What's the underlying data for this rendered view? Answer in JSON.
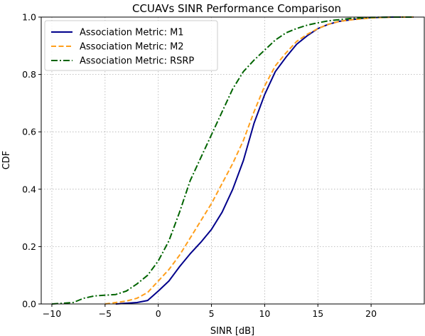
{
  "chart_data": {
    "type": "line",
    "title": "CCUAVs SINR Performance Comparison",
    "xlabel": "SINR [dB]",
    "ylabel": "CDF",
    "xlim": [
      -11,
      25
    ],
    "ylim": [
      0,
      1.0
    ],
    "xticks": [
      -10,
      -5,
      0,
      5,
      10,
      15,
      20
    ],
    "yticks": [
      0.0,
      0.2,
      0.4,
      0.6,
      0.8,
      1.0
    ],
    "xtick_labels": [
      "−10",
      "−5",
      "0",
      "5",
      "10",
      "15",
      "20"
    ],
    "ytick_labels": [
      "0.0",
      "0.2",
      "0.4",
      "0.6",
      "0.8",
      "1.0"
    ],
    "grid": true,
    "legend_position": "top-left",
    "series": [
      {
        "name": "Association Metric: M1",
        "color": "#00008b",
        "style": "solid",
        "points": [
          [
            -4,
            0
          ],
          [
            -2,
            0.005
          ],
          [
            -1,
            0.012
          ],
          [
            0,
            0.045
          ],
          [
            1,
            0.08
          ],
          [
            2,
            0.13
          ],
          [
            3,
            0.175
          ],
          [
            4,
            0.215
          ],
          [
            5,
            0.26
          ],
          [
            6,
            0.32
          ],
          [
            7,
            0.4
          ],
          [
            8,
            0.5
          ],
          [
            9,
            0.63
          ],
          [
            10,
            0.73
          ],
          [
            11,
            0.81
          ],
          [
            12,
            0.86
          ],
          [
            13,
            0.905
          ],
          [
            14,
            0.935
          ],
          [
            15,
            0.96
          ],
          [
            16,
            0.975
          ],
          [
            17,
            0.985
          ],
          [
            18,
            0.99
          ],
          [
            19,
            0.995
          ],
          [
            20,
            0.998
          ],
          [
            22,
            1.0
          ],
          [
            24,
            1.0
          ]
        ]
      },
      {
        "name": "Association Metric: M2",
        "color": "#ff9f1c",
        "style": "dashed",
        "points": [
          [
            -5,
            0
          ],
          [
            -3,
            0.01
          ],
          [
            -2,
            0.02
          ],
          [
            -1,
            0.04
          ],
          [
            0,
            0.08
          ],
          [
            1,
            0.12
          ],
          [
            2,
            0.17
          ],
          [
            3,
            0.23
          ],
          [
            4,
            0.29
          ],
          [
            5,
            0.35
          ],
          [
            6,
            0.42
          ],
          [
            7,
            0.49
          ],
          [
            8,
            0.57
          ],
          [
            9,
            0.67
          ],
          [
            10,
            0.76
          ],
          [
            11,
            0.83
          ],
          [
            12,
            0.875
          ],
          [
            13,
            0.915
          ],
          [
            14,
            0.94
          ],
          [
            15,
            0.96
          ],
          [
            16,
            0.975
          ],
          [
            17,
            0.985
          ],
          [
            18,
            0.99
          ],
          [
            20,
            0.997
          ],
          [
            22,
            1.0
          ],
          [
            24,
            1.0
          ]
        ]
      },
      {
        "name": "Association Metric: RSRP",
        "color": "#006400",
        "style": "dashdot",
        "points": [
          [
            -10,
            0
          ],
          [
            -8,
            0.005
          ],
          [
            -7,
            0.02
          ],
          [
            -6,
            0.028
          ],
          [
            -4,
            0.033
          ],
          [
            -3,
            0.045
          ],
          [
            -2,
            0.07
          ],
          [
            -1,
            0.1
          ],
          [
            0,
            0.15
          ],
          [
            1,
            0.22
          ],
          [
            2,
            0.32
          ],
          [
            3,
            0.43
          ],
          [
            4,
            0.51
          ],
          [
            5,
            0.59
          ],
          [
            6,
            0.67
          ],
          [
            7,
            0.75
          ],
          [
            8,
            0.81
          ],
          [
            9,
            0.85
          ],
          [
            10,
            0.885
          ],
          [
            11,
            0.92
          ],
          [
            12,
            0.945
          ],
          [
            13,
            0.96
          ],
          [
            14,
            0.972
          ],
          [
            15,
            0.98
          ],
          [
            16,
            0.987
          ],
          [
            18,
            0.995
          ],
          [
            20,
            0.999
          ],
          [
            22,
            1.0
          ],
          [
            24,
            1.0
          ]
        ]
      }
    ]
  }
}
